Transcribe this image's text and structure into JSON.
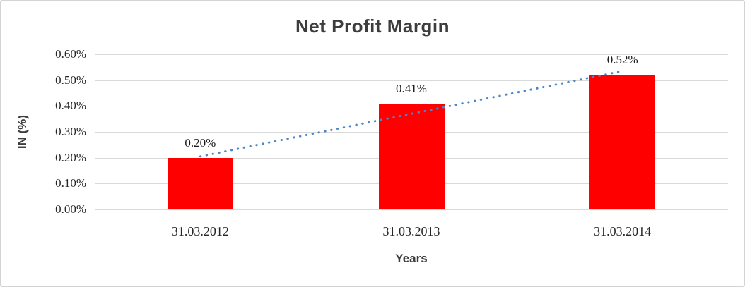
{
  "chart": {
    "title": "Net Profit Margin",
    "y_axis_title": "IN (%)",
    "x_axis_title": "Years",
    "colors": {
      "bar": "#ff0000",
      "trendline": "#4a86c8",
      "gridline": "#d9d9d9",
      "title_text": "#3d3d3d",
      "tick_text": "#262626",
      "frame_border": "#d3d3d3"
    }
  },
  "chart_data": {
    "type": "bar",
    "title": "Net Profit Margin",
    "xlabel": "Years",
    "ylabel": "IN (%)",
    "categories": [
      "31.03.2012",
      "31.03.2013",
      "31.03.2014"
    ],
    "values": [
      0.2,
      0.41,
      0.52
    ],
    "data_labels": [
      "0.20%",
      "0.41%",
      "0.52%"
    ],
    "y_ticks": [
      "0.00%",
      "0.10%",
      "0.20%",
      "0.30%",
      "0.40%",
      "0.50%",
      "0.60%"
    ],
    "ylim": [
      0,
      0.6
    ],
    "grid": true,
    "legend": "none",
    "series_color": "#ff0000",
    "trendline": {
      "style": "dotted",
      "color": "#4a86c8",
      "from_value": 0.205,
      "to_value": 0.535
    }
  }
}
